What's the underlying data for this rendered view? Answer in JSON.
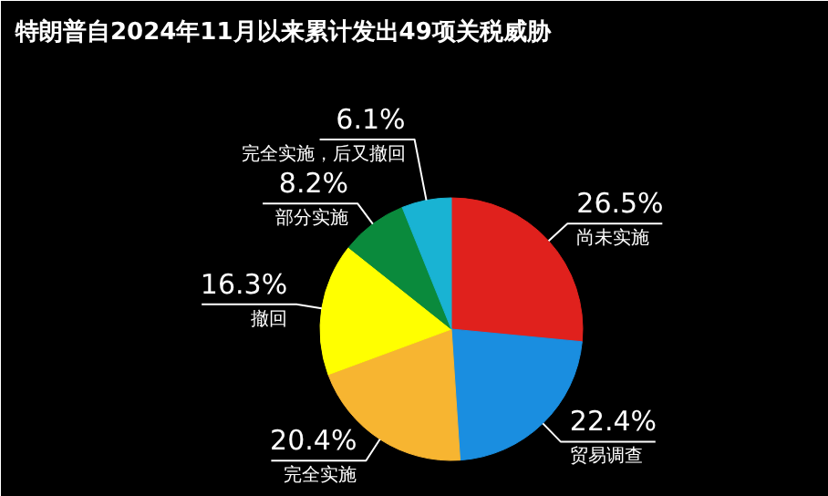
{
  "chart_data": {
    "type": "pie",
    "title": "特朗普自2024年11月以来累计发出49项关税威胁",
    "categories": [
      "尚未实施",
      "贸易调查",
      "完全实施",
      "撤回",
      "部分实施",
      "完全实施，后又撤回"
    ],
    "values": [
      26.5,
      22.4,
      20.4,
      16.3,
      8.2,
      6.1
    ],
    "colors": [
      "#e0211d",
      "#1a8ee0",
      "#f7b531",
      "#ffff00",
      "#0a8a3c",
      "#19b3d3"
    ],
    "value_labels": [
      "26.5%",
      "22.4%",
      "20.4%",
      "16.3%",
      "8.2%",
      "6.1%"
    ]
  }
}
